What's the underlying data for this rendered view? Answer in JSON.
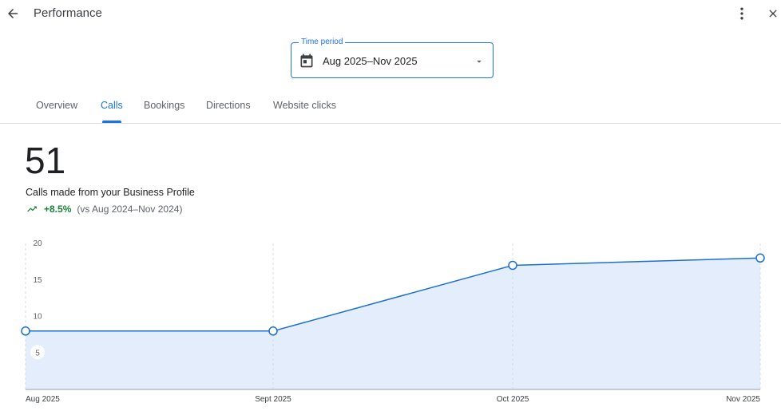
{
  "header": {
    "title": "Performance",
    "back_icon": "arrow-back-icon",
    "more_icon": "more-vert-icon",
    "close_icon": "close-icon"
  },
  "time_period": {
    "label": "Time period",
    "value": "Aug 2025–Nov 2025",
    "icon": "calendar-icon"
  },
  "tabs": [
    {
      "label": "Overview",
      "active": false
    },
    {
      "label": "Calls",
      "active": true
    },
    {
      "label": "Bookings",
      "active": false
    },
    {
      "label": "Directions",
      "active": false
    },
    {
      "label": "Website clicks",
      "active": false
    }
  ],
  "metric": {
    "value": "51",
    "description": "Calls made from your Business Profile",
    "change": "+8.5%",
    "comparison": "(vs Aug 2024–Nov 2024)"
  },
  "colors": {
    "accent": "#1a73e8",
    "positive": "#188038",
    "area_fill": "#e3edfc",
    "line": "#1a6fd1"
  },
  "chart_data": {
    "type": "area",
    "categories": [
      "Aug 2025",
      "Sept 2025",
      "Oct 2025",
      "Nov 2025"
    ],
    "values": [
      8,
      8,
      17,
      18
    ],
    "y_ticks": [
      "20",
      "15",
      "10",
      "5"
    ],
    "ylim": [
      0,
      20
    ],
    "grid": "vertical dashed at each category",
    "legend": "none"
  }
}
